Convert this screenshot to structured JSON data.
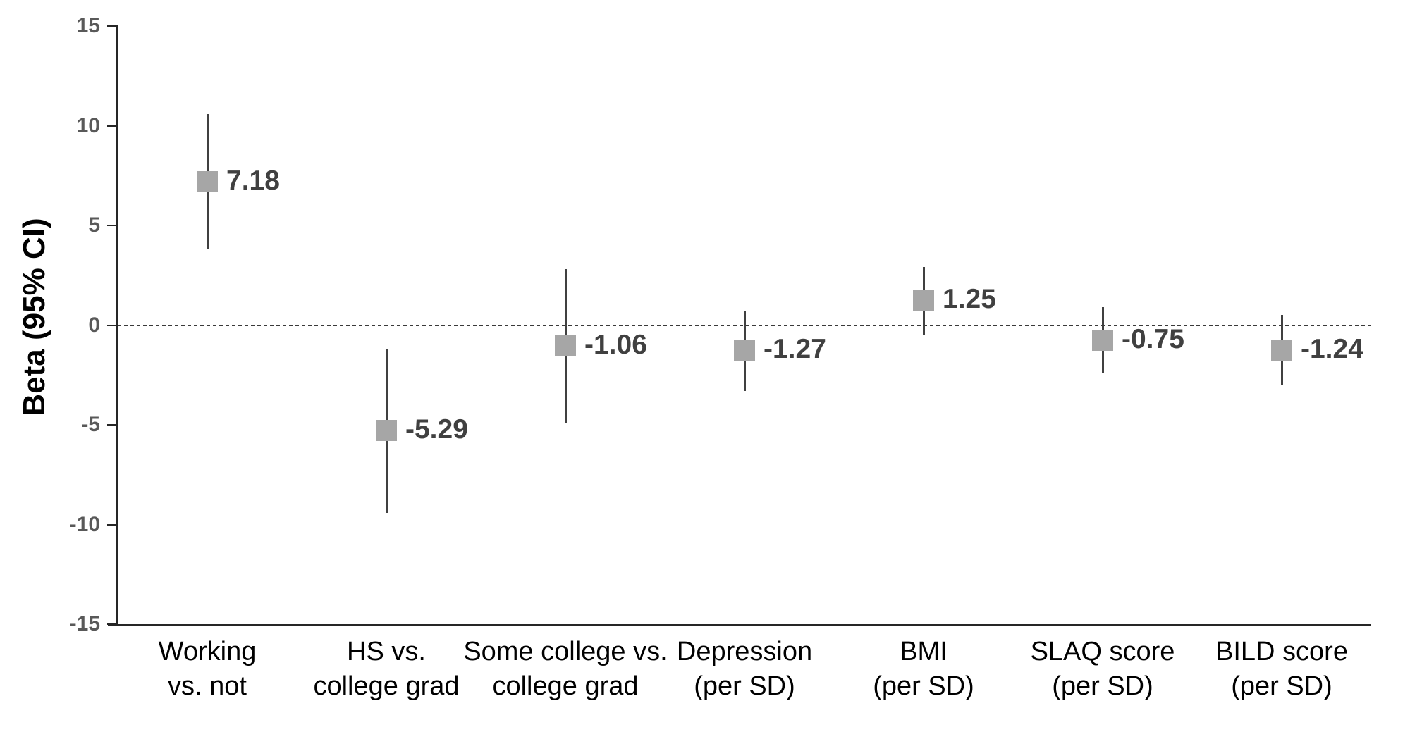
{
  "chart_data": {
    "type": "scatter",
    "title": "",
    "ylabel": "Beta (95% CI)",
    "xlabel": "",
    "ylim": [
      -15,
      15
    ],
    "yticks": [
      15,
      10,
      5,
      0,
      -5,
      -10,
      -15
    ],
    "ytick_labels": [
      "15",
      "10",
      "5",
      "0",
      "-5",
      "-10",
      "-15"
    ],
    "grid": "off",
    "legend": "none",
    "reference_line_y": 0,
    "reference_line_style": "dashed",
    "marker_shape": "square",
    "points": [
      {
        "category_lines": [
          "Working",
          "vs. not"
        ],
        "beta": 7.18,
        "label": "7.18",
        "ci_low": 3.8,
        "ci_high": 10.6
      },
      {
        "category_lines": [
          "HS vs.",
          "college grad"
        ],
        "beta": -5.29,
        "label": "-5.29",
        "ci_low": -9.4,
        "ci_high": -1.2
      },
      {
        "category_lines": [
          "Some college vs.",
          "college grad"
        ],
        "beta": -1.06,
        "label": "-1.06",
        "ci_low": -4.9,
        "ci_high": 2.8
      },
      {
        "category_lines": [
          "Depression",
          "(per SD)"
        ],
        "beta": -1.27,
        "label": "-1.27",
        "ci_low": -3.3,
        "ci_high": 0.7
      },
      {
        "category_lines": [
          "BMI",
          "(per SD)"
        ],
        "beta": 1.25,
        "label": "1.25",
        "ci_low": -0.5,
        "ci_high": 2.9
      },
      {
        "category_lines": [
          "SLAQ score",
          "(per SD)"
        ],
        "beta": -0.75,
        "label": "-0.75",
        "ci_low": -2.4,
        "ci_high": 0.9
      },
      {
        "category_lines": [
          "BILD score",
          "(per SD)"
        ],
        "beta": -1.24,
        "label": "-1.24",
        "ci_low": -3.0,
        "ci_high": 0.5
      }
    ],
    "colors": {
      "marker": "#a6a6a6",
      "error_bar": "#404040",
      "value_label": "#404040",
      "tick_label": "#595959",
      "axis": "#262626",
      "zero_line": "#3a3a3a",
      "category_label": "#000000",
      "background": "#ffffff"
    }
  }
}
